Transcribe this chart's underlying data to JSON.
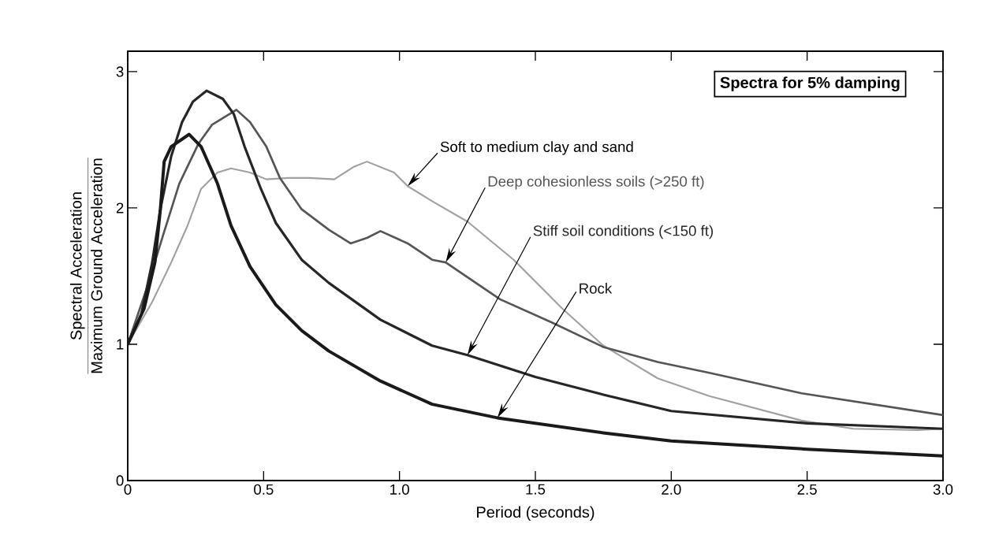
{
  "chart_data": {
    "type": "line",
    "title": "Spectra for 5% damping",
    "xlabel": "Period (seconds)",
    "ylabel": "\\frac{\\mbox{Spectral Acceleration}}{\\mbox{Maximum Ground Acceleration}}",
    "xlim": [
      0,
      3.0
    ],
    "ylim": [
      0,
      3.15
    ],
    "xticks": [
      0,
      0.5,
      {
        "value": 1,
        "label": "1.0"
      },
      1.5,
      {
        "value": 2,
        "label": "2.0"
      },
      2.5,
      {
        "value": 3,
        "label": "3.0"
      }
    ],
    "yticks": [
      0,
      1,
      2,
      3
    ],
    "series": [
      {
        "name": "Soft to medium clay and sand",
        "color": "#a0a0a0",
        "x": [
          0,
          0.09,
          0.16,
          0.22,
          0.27,
          0.33,
          0.38,
          0.45,
          0.51,
          0.59,
          0.67,
          0.76,
          0.83,
          0.88,
          0.98,
          1.03,
          1.12,
          1.25,
          1.42,
          1.6,
          1.75,
          1.95,
          2.14,
          2.48,
          2.67,
          2.91,
          3.0
        ],
        "values": [
          1.0,
          1.31,
          1.6,
          1.87,
          2.14,
          2.26,
          2.29,
          2.26,
          2.21,
          2.22,
          2.22,
          2.21,
          2.3,
          2.34,
          2.26,
          2.16,
          2.05,
          1.9,
          1.62,
          1.26,
          0.99,
          0.75,
          0.62,
          0.44,
          0.38,
          0.37,
          0.38
        ]
      },
      {
        "name": "Deep cohesionless soils  (>250 ft)",
        "color": "#555555",
        "x": [
          0,
          0.07,
          0.13,
          0.19,
          0.26,
          0.31,
          0.4,
          0.45,
          0.51,
          0.56,
          0.64,
          0.74,
          0.82,
          0.88,
          0.93,
          1.03,
          1.12,
          1.17,
          1.37,
          1.56,
          1.75,
          1.95,
          2.14,
          2.48,
          3.0
        ],
        "values": [
          1.0,
          1.41,
          1.8,
          2.18,
          2.47,
          2.61,
          2.72,
          2.63,
          2.45,
          2.22,
          1.99,
          1.84,
          1.74,
          1.78,
          1.83,
          1.74,
          1.62,
          1.6,
          1.33,
          1.16,
          0.98,
          0.87,
          0.79,
          0.64,
          0.48
        ]
      },
      {
        "name": "Stiff soil conditions  (<150 ft)",
        "color": "#262626",
        "x": [
          0,
          0.05,
          0.09,
          0.12,
          0.16,
          0.2,
          0.24,
          0.29,
          0.35,
          0.39,
          0.43,
          0.49,
          0.545,
          0.64,
          0.74,
          0.93,
          1.12,
          1.25,
          1.5,
          1.75,
          2.0,
          2.5,
          3.0
        ],
        "values": [
          1.0,
          1.22,
          1.6,
          1.99,
          2.38,
          2.63,
          2.78,
          2.86,
          2.8,
          2.69,
          2.45,
          2.14,
          1.89,
          1.62,
          1.45,
          1.18,
          0.99,
          0.92,
          0.76,
          0.63,
          0.51,
          0.42,
          0.38
        ]
      },
      {
        "name": "Rock",
        "color": "#1a1a1a",
        "x": [
          0,
          0.06,
          0.1,
          0.12,
          0.134,
          0.16,
          0.226,
          0.27,
          0.33,
          0.38,
          0.45,
          0.545,
          0.64,
          0.74,
          0.93,
          1.12,
          1.36,
          1.75,
          2.0,
          2.5,
          3.0
        ],
        "values": [
          1.0,
          1.26,
          1.6,
          1.99,
          2.34,
          2.45,
          2.54,
          2.45,
          2.18,
          1.87,
          1.57,
          1.29,
          1.1,
          0.95,
          0.73,
          0.56,
          0.46,
          0.35,
          0.29,
          0.23,
          0.18
        ]
      }
    ]
  }
}
